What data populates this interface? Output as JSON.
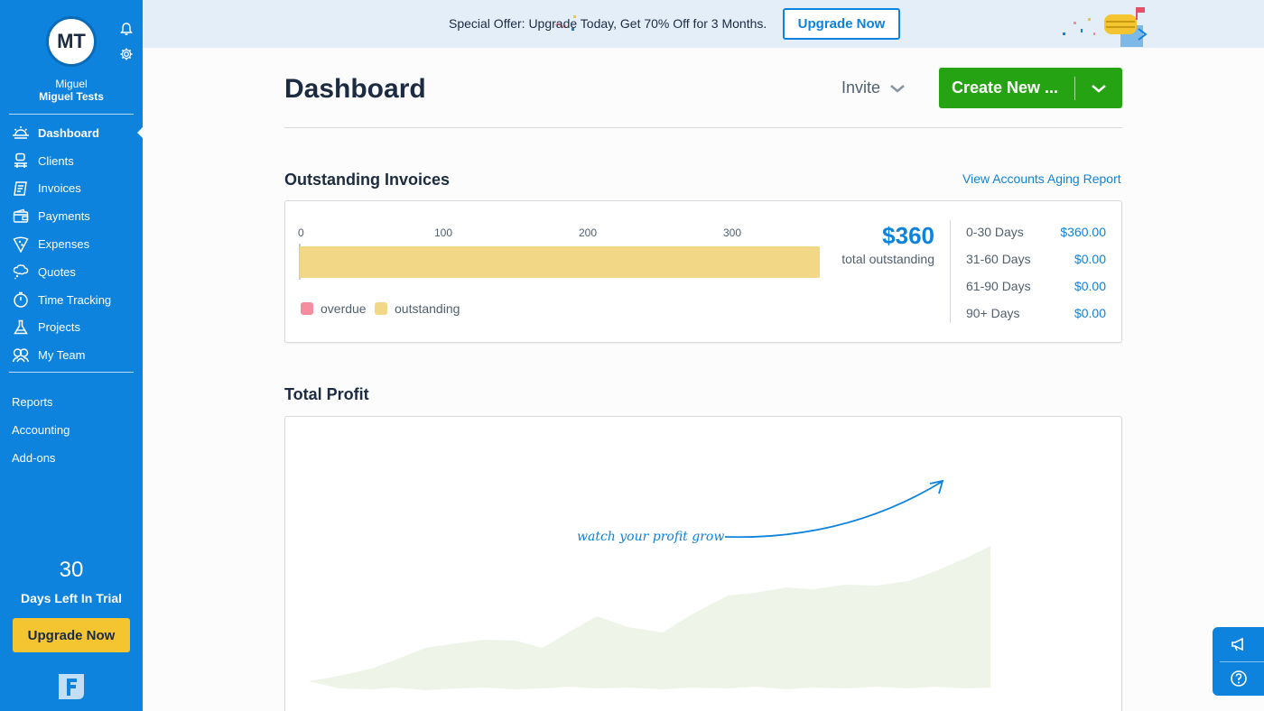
{
  "sidebar": {
    "avatar_initials": "MT",
    "user_first": "Miguel",
    "user_full": "Miguel Tests",
    "nav": [
      {
        "label": "Dashboard",
        "icon": "dashboard-sun-icon"
      },
      {
        "label": "Clients",
        "icon": "clients-icon"
      },
      {
        "label": "Invoices",
        "icon": "invoices-icon"
      },
      {
        "label": "Payments",
        "icon": "wallet-icon"
      },
      {
        "label": "Expenses",
        "icon": "pizza-slice-icon"
      },
      {
        "label": "Quotes",
        "icon": "thought-bubble-icon"
      },
      {
        "label": "Time Tracking",
        "icon": "stopwatch-icon"
      },
      {
        "label": "Projects",
        "icon": "flask-icon"
      },
      {
        "label": "My Team",
        "icon": "team-icon"
      }
    ],
    "secondary": [
      "Reports",
      "Accounting",
      "Add-ons"
    ],
    "trial_days": "30",
    "trial_label": "Days Left In Trial",
    "upgrade_label": "Upgrade Now"
  },
  "banner": {
    "text": "Special Offer: Upgrade Today, Get 70% Off for 3 Months.",
    "button": "Upgrade Now"
  },
  "header": {
    "title": "Dashboard",
    "invite": "Invite",
    "create": "Create New ..."
  },
  "outstanding": {
    "title": "Outstanding Invoices",
    "aging_link": "View Accounts Aging Report",
    "total": "$360",
    "total_label": "total outstanding",
    "legend": [
      "overdue",
      "outstanding"
    ],
    "aging": [
      {
        "range": "0-30 Days",
        "amount": "$360.00"
      },
      {
        "range": "31-60 Days",
        "amount": "$0.00"
      },
      {
        "range": "61-90 Days",
        "amount": "$0.00"
      },
      {
        "range": "90+ Days",
        "amount": "$0.00"
      }
    ]
  },
  "chart_data": {
    "type": "bar",
    "orientation": "horizontal",
    "categories": [
      "Outstanding Invoices"
    ],
    "series": [
      {
        "name": "overdue",
        "values": [
          0
        ],
        "color": "#f58c9f"
      },
      {
        "name": "outstanding",
        "values": [
          360
        ],
        "color": "#f2d787"
      }
    ],
    "xticks": [
      0,
      100,
      200,
      300
    ],
    "xlim": [
      0,
      360
    ]
  },
  "profit": {
    "title": "Total Profit",
    "annotation": "watch your profit grow"
  },
  "colors": {
    "brand_blue": "#0d83dd",
    "create_green": "#26a313",
    "upgrade_yellow": "#f4c431",
    "outstanding_bar": "#f2d787",
    "overdue": "#f58c9f"
  }
}
